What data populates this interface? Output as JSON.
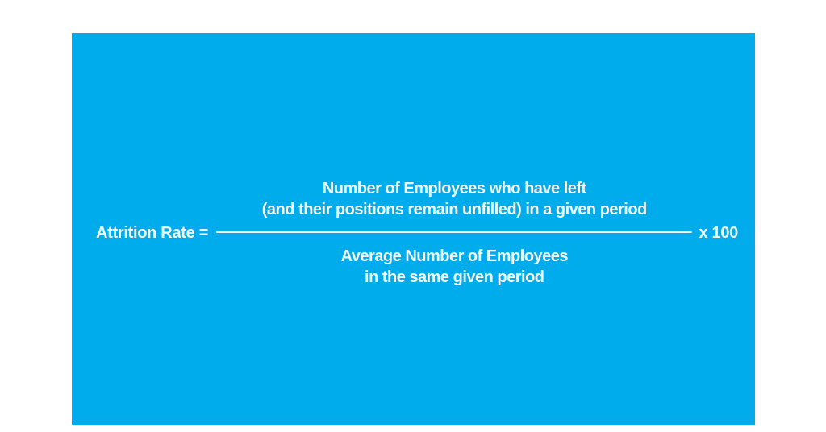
{
  "colors": {
    "card_background": "#00ACEC",
    "text": "#F0FAFE",
    "page_background": "#FFFFFF"
  },
  "formula": {
    "lhs": "Attrition Rate =",
    "numerator_line1": "Number of Employees who have left",
    "numerator_line2": "(and their positions remain unfilled) in a given period",
    "denominator_line1": "Average Number of Employees",
    "denominator_line2": "in the same given period",
    "multiplier": "x 100"
  }
}
